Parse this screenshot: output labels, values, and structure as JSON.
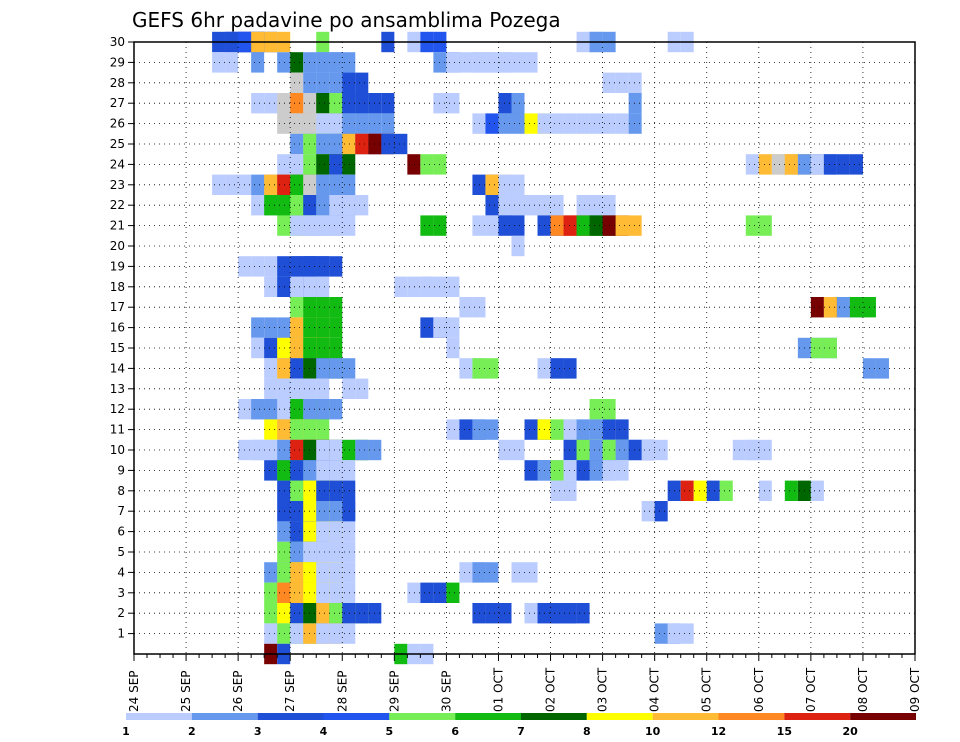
{
  "chart_data": {
    "type": "heatmap",
    "title": "GEFS 6hr padavine po ansamblima Pozega",
    "x_ticks": [
      "24 SEP",
      "25 SEP",
      "26 SEP",
      "27 SEP",
      "28 SEP",
      "29 SEP",
      "30 SEP",
      "01 OCT",
      "02 OCT",
      "03 OCT",
      "04 OCT",
      "05 OCT",
      "06 OCT",
      "07 OCT",
      "08 OCT",
      "09 OCT"
    ],
    "y_ticks": [
      1,
      2,
      3,
      4,
      5,
      6,
      7,
      8,
      9,
      10,
      11,
      12,
      13,
      14,
      15,
      16,
      17,
      18,
      19,
      20,
      21,
      22,
      23,
      24,
      25,
      26,
      27,
      28,
      29,
      30
    ],
    "ylim": [
      0,
      30
    ],
    "x_steps_per_day": 4,
    "grid": true,
    "legend_position": "bottom",
    "colorbar": {
      "labels": [
        "1",
        "2",
        "3",
        "4",
        "5",
        "6",
        "7",
        "8",
        "10",
        "12",
        "15",
        "20"
      ],
      "colors": [
        "#bbccff",
        "#6699ee",
        "#1f4fd6",
        "#2255ee",
        "#77ee55",
        "#11bb11",
        "#006600",
        "#ffff00",
        "#ffbb33",
        "#ff8822",
        "#dd2211",
        "#770000"
      ]
    },
    "cells": [
      [
        30,
        3,
        6,
        3
      ],
      [
        30,
        3,
        7,
        3
      ],
      [
        30,
        3,
        8,
        4
      ],
      [
        30,
        3,
        9,
        10
      ],
      [
        30,
        1,
        14,
        5
      ],
      [
        30,
        1,
        19,
        3
      ],
      [
        30,
        1,
        21,
        1
      ],
      [
        30,
        2,
        22,
        4
      ],
      [
        30,
        2,
        34,
        1
      ],
      [
        30,
        2,
        35,
        2
      ],
      [
        30,
        1,
        41,
        1
      ],
      [
        30,
        1,
        42,
        1
      ],
      [
        29,
        2,
        6,
        1
      ],
      [
        29,
        1,
        9,
        2
      ],
      [
        29,
        1,
        11,
        2
      ],
      [
        29,
        1,
        12,
        7
      ],
      [
        29,
        2,
        13,
        2
      ],
      [
        29,
        2,
        14,
        2
      ],
      [
        29,
        2,
        15,
        2
      ],
      [
        29,
        2,
        23,
        2
      ],
      [
        29,
        1,
        24,
        1
      ],
      [
        29,
        3,
        25,
        1
      ],
      [
        29,
        1,
        26,
        1
      ],
      [
        29,
        2,
        27,
        1
      ],
      [
        29,
        3,
        28,
        1
      ],
      [
        28,
        1,
        12,
        9
      ],
      [
        28,
        3,
        13,
        1
      ],
      [
        28,
        4,
        13,
        2
      ],
      [
        28,
        2,
        16,
        3
      ],
      [
        28,
        2,
        36,
        1
      ],
      [
        28,
        1,
        38,
        1
      ],
      [
        27,
        3,
        9,
        1
      ],
      [
        27,
        3,
        11,
        14
      ],
      [
        27,
        3,
        12,
        12
      ],
      [
        27,
        3,
        13,
        11
      ],
      [
        27,
        3,
        14,
        7
      ],
      [
        27,
        3,
        15,
        5
      ],
      [
        27,
        2,
        16,
        2
      ],
      [
        27,
        4,
        16,
        3
      ],
      [
        27,
        2,
        23,
        1
      ],
      [
        27,
        2,
        28,
        3
      ],
      [
        27,
        1,
        29,
        2
      ],
      [
        27,
        1,
        38,
        2
      ],
      [
        26,
        3,
        11,
        9
      ],
      [
        26,
        3,
        12,
        14
      ],
      [
        26,
        3,
        13,
        11
      ],
      [
        26,
        3,
        14,
        1
      ],
      [
        26,
        2,
        16,
        2
      ],
      [
        26,
        3,
        17,
        2
      ],
      [
        26,
        1,
        26,
        1
      ],
      [
        26,
        1,
        27,
        4
      ],
      [
        26,
        2,
        28,
        2
      ],
      [
        26,
        2,
        30,
        8
      ],
      [
        26,
        1,
        31,
        1
      ],
      [
        26,
        1,
        32,
        1
      ],
      [
        26,
        1,
        33,
        1
      ],
      [
        26,
        1,
        34,
        1
      ],
      [
        26,
        1,
        35,
        1
      ],
      [
        26,
        1,
        36,
        1
      ],
      [
        26,
        1,
        37,
        1
      ],
      [
        26,
        1,
        38,
        2
      ],
      [
        25,
        3,
        12,
        2
      ],
      [
        25,
        3,
        13,
        5
      ],
      [
        25,
        3,
        14,
        2
      ],
      [
        25,
        3,
        15,
        2
      ],
      [
        25,
        3,
        16,
        4
      ],
      [
        25,
        2,
        16,
        10
      ],
      [
        25,
        2,
        17,
        15
      ],
      [
        25,
        2,
        18,
        20
      ],
      [
        25,
        2,
        19,
        3
      ],
      [
        24,
        3,
        11,
        1
      ],
      [
        24,
        3,
        12,
        1
      ],
      [
        24,
        3,
        13,
        5
      ],
      [
        24,
        3,
        14,
        7
      ],
      [
        24,
        1,
        15,
        3
      ],
      [
        24,
        1,
        21,
        20
      ],
      [
        24,
        2,
        22,
        5
      ],
      [
        24,
        1,
        47,
        1
      ],
      [
        24,
        3,
        48,
        10
      ],
      [
        24,
        3,
        49,
        14
      ],
      [
        24,
        3,
        50,
        10
      ],
      [
        24,
        3,
        51,
        2
      ],
      [
        24,
        2,
        52,
        1
      ],
      [
        24,
        3,
        53,
        3
      ],
      [
        23,
        3,
        6,
        1
      ],
      [
        23,
        3,
        9,
        2
      ],
      [
        23,
        3,
        10,
        10
      ],
      [
        23,
        3,
        11,
        15
      ],
      [
        23,
        3,
        12,
        6
      ],
      [
        23,
        3,
        13,
        14
      ],
      [
        23,
        3,
        14,
        2
      ],
      [
        23,
        2,
        26,
        3
      ],
      [
        23,
        2,
        27,
        10
      ],
      [
        23,
        2,
        28,
        1
      ],
      [
        22,
        3,
        9,
        1
      ],
      [
        22,
        3,
        10,
        6
      ],
      [
        22,
        3,
        11,
        6
      ],
      [
        22,
        3,
        12,
        5
      ],
      [
        22,
        3,
        13,
        3
      ],
      [
        22,
        3,
        14,
        2
      ],
      [
        22,
        3,
        15,
        1
      ],
      [
        22,
        2,
        27,
        3
      ],
      [
        22,
        2,
        28,
        1
      ],
      [
        22,
        2,
        29,
        1
      ],
      [
        22,
        2,
        31,
        1
      ],
      [
        22,
        2,
        34,
        1
      ],
      [
        22,
        2,
        35,
        1
      ],
      [
        21,
        3,
        11,
        5
      ],
      [
        21,
        3,
        12,
        1
      ],
      [
        21,
        3,
        13,
        1
      ],
      [
        21,
        3,
        14,
        1
      ],
      [
        21,
        2,
        22,
        6
      ],
      [
        21,
        2,
        26,
        1
      ],
      [
        21,
        2,
        28,
        3
      ],
      [
        21,
        2,
        31,
        3
      ],
      [
        21,
        2,
        32,
        12
      ],
      [
        21,
        2,
        33,
        15
      ],
      [
        21,
        2,
        34,
        6
      ],
      [
        21,
        2,
        35,
        7
      ],
      [
        21,
        2,
        36,
        20
      ],
      [
        21,
        2,
        37,
        10
      ],
      [
        21,
        2,
        47,
        5
      ],
      [
        20,
        1,
        29,
        1
      ],
      [
        19,
        3,
        8,
        1
      ],
      [
        19,
        3,
        11,
        3
      ],
      [
        19,
        3,
        12,
        3
      ],
      [
        19,
        3,
        13,
        3
      ],
      [
        18,
        3,
        10,
        1
      ],
      [
        18,
        3,
        11,
        3
      ],
      [
        18,
        3,
        12,
        1
      ],
      [
        18,
        3,
        20,
        1
      ],
      [
        18,
        3,
        22,
        1
      ],
      [
        17,
        3,
        12,
        5
      ],
      [
        17,
        3,
        13,
        6
      ],
      [
        17,
        2,
        25,
        1
      ],
      [
        17,
        2,
        52,
        20
      ],
      [
        17,
        2,
        53,
        10
      ],
      [
        17,
        2,
        54,
        2
      ],
      [
        17,
        2,
        55,
        6
      ],
      [
        16,
        3,
        9,
        2
      ],
      [
        16,
        3,
        12,
        10
      ],
      [
        16,
        3,
        13,
        6
      ],
      [
        16,
        2,
        22,
        3
      ],
      [
        16,
        2,
        23,
        1
      ],
      [
        15,
        3,
        9,
        1
      ],
      [
        15,
        3,
        10,
        3
      ],
      [
        15,
        3,
        11,
        8
      ],
      [
        15,
        3,
        12,
        10
      ],
      [
        15,
        3,
        13,
        6
      ],
      [
        15,
        1,
        24,
        1
      ],
      [
        15,
        3,
        51,
        2
      ],
      [
        15,
        2,
        52,
        5
      ],
      [
        14,
        3,
        10,
        1
      ],
      [
        14,
        3,
        11,
        10
      ],
      [
        14,
        3,
        12,
        3
      ],
      [
        14,
        3,
        13,
        7
      ],
      [
        14,
        3,
        14,
        2
      ],
      [
        14,
        2,
        25,
        1
      ],
      [
        14,
        2,
        26,
        5
      ],
      [
        14,
        2,
        31,
        1
      ],
      [
        14,
        2,
        32,
        3
      ],
      [
        14,
        2,
        56,
        2
      ],
      [
        13,
        3,
        10,
        1
      ],
      [
        13,
        3,
        11,
        1
      ],
      [
        13,
        3,
        12,
        1
      ],
      [
        13,
        2,
        16,
        1
      ],
      [
        12,
        3,
        8,
        1
      ],
      [
        12,
        3,
        9,
        2
      ],
      [
        12,
        3,
        10,
        2
      ],
      [
        12,
        3,
        11,
        1
      ],
      [
        12,
        3,
        12,
        6
      ],
      [
        12,
        3,
        13,
        2
      ],
      [
        12,
        2,
        35,
        5
      ],
      [
        11,
        3,
        10,
        8
      ],
      [
        11,
        3,
        11,
        10
      ],
      [
        11,
        3,
        12,
        5
      ],
      [
        11,
        2,
        24,
        1
      ],
      [
        11,
        2,
        25,
        3
      ],
      [
        11,
        2,
        26,
        2
      ],
      [
        11,
        2,
        30,
        3
      ],
      [
        11,
        2,
        31,
        8
      ],
      [
        11,
        2,
        32,
        5
      ],
      [
        11,
        2,
        33,
        1
      ],
      [
        11,
        2,
        34,
        2
      ],
      [
        11,
        2,
        36,
        3
      ],
      [
        10,
        3,
        8,
        1
      ],
      [
        10,
        3,
        9,
        1
      ],
      [
        10,
        3,
        11,
        2
      ],
      [
        10,
        3,
        12,
        15
      ],
      [
        10,
        3,
        13,
        7
      ],
      [
        10,
        3,
        14,
        1
      ],
      [
        10,
        2,
        16,
        6
      ],
      [
        10,
        2,
        17,
        2
      ],
      [
        10,
        2,
        28,
        1
      ],
      [
        10,
        2,
        33,
        3
      ],
      [
        10,
        2,
        34,
        5
      ],
      [
        10,
        2,
        35,
        2
      ],
      [
        10,
        2,
        36,
        5
      ],
      [
        10,
        2,
        37,
        2
      ],
      [
        10,
        2,
        38,
        3
      ],
      [
        10,
        2,
        39,
        1
      ],
      [
        10,
        2,
        46,
        1
      ],
      [
        10,
        2,
        47,
        1
      ],
      [
        9,
        3,
        10,
        3
      ],
      [
        9,
        3,
        11,
        6
      ],
      [
        9,
        3,
        12,
        3
      ],
      [
        9,
        3,
        13,
        2
      ],
      [
        9,
        3,
        14,
        1
      ],
      [
        9,
        2,
        30,
        3
      ],
      [
        9,
        2,
        31,
        2
      ],
      [
        9,
        2,
        32,
        5
      ],
      [
        9,
        2,
        33,
        1
      ],
      [
        9,
        2,
        34,
        3
      ],
      [
        9,
        2,
        35,
        2
      ],
      [
        9,
        2,
        36,
        1
      ],
      [
        8,
        3,
        11,
        3
      ],
      [
        8,
        3,
        12,
        5
      ],
      [
        8,
        3,
        13,
        8
      ],
      [
        8,
        3,
        14,
        3
      ],
      [
        8,
        1,
        32,
        1
      ],
      [
        8,
        1,
        33,
        1
      ],
      [
        8,
        1,
        41,
        3
      ],
      [
        8,
        1,
        42,
        15
      ],
      [
        8,
        1,
        43,
        8
      ],
      [
        8,
        1,
        44,
        3
      ],
      [
        8,
        1,
        45,
        5
      ],
      [
        8,
        1,
        48,
        1
      ],
      [
        8,
        1,
        50,
        6
      ],
      [
        8,
        1,
        51,
        7
      ],
      [
        8,
        1,
        52,
        1
      ],
      [
        7,
        3,
        11,
        3
      ],
      [
        7,
        3,
        12,
        3
      ],
      [
        7,
        3,
        13,
        8
      ],
      [
        7,
        3,
        14,
        2
      ],
      [
        7,
        1,
        16,
        3
      ],
      [
        7,
        1,
        39,
        1
      ],
      [
        7,
        1,
        40,
        3
      ],
      [
        6,
        3,
        11,
        2
      ],
      [
        6,
        3,
        12,
        3
      ],
      [
        6,
        3,
        13,
        8
      ],
      [
        6,
        3,
        14,
        1
      ],
      [
        5,
        3,
        11,
        5
      ],
      [
        5,
        3,
        12,
        2
      ],
      [
        5,
        3,
        13,
        1
      ],
      [
        5,
        3,
        14,
        1
      ],
      [
        4,
        3,
        10,
        2
      ],
      [
        4,
        3,
        11,
        5
      ],
      [
        4,
        3,
        12,
        10
      ],
      [
        4,
        3,
        13,
        8
      ],
      [
        4,
        3,
        14,
        1
      ],
      [
        4,
        2,
        25,
        1
      ],
      [
        4,
        2,
        26,
        2
      ],
      [
        4,
        2,
        29,
        1
      ],
      [
        3,
        3,
        10,
        5
      ],
      [
        3,
        3,
        11,
        12
      ],
      [
        3,
        3,
        12,
        10
      ],
      [
        3,
        3,
        13,
        8
      ],
      [
        3,
        3,
        14,
        1
      ],
      [
        3,
        1,
        21,
        1
      ],
      [
        3,
        1,
        22,
        3
      ],
      [
        3,
        1,
        23,
        3
      ],
      [
        3,
        1,
        24,
        6
      ],
      [
        2,
        3,
        10,
        5
      ],
      [
        2,
        3,
        11,
        8
      ],
      [
        2,
        3,
        12,
        3
      ],
      [
        2,
        3,
        13,
        7
      ],
      [
        2,
        3,
        14,
        10
      ],
      [
        2,
        3,
        15,
        5
      ],
      [
        2,
        3,
        16,
        3
      ],
      [
        2,
        3,
        26,
        3
      ],
      [
        2,
        3,
        30,
        1
      ],
      [
        2,
        3,
        31,
        3
      ],
      [
        2,
        3,
        32,
        3
      ],
      [
        1,
        3,
        10,
        1
      ],
      [
        1,
        3,
        11,
        5
      ],
      [
        1,
        3,
        12,
        1
      ],
      [
        1,
        3,
        13,
        10
      ],
      [
        1,
        3,
        14,
        1
      ],
      [
        1,
        2,
        40,
        2
      ],
      [
        1,
        2,
        41,
        1
      ],
      [
        0,
        1,
        10,
        20
      ],
      [
        0,
        1,
        11,
        3
      ],
      [
        0,
        1,
        20,
        6
      ],
      [
        0,
        1,
        21,
        1
      ],
      [
        0,
        1,
        22,
        1
      ]
    ]
  }
}
